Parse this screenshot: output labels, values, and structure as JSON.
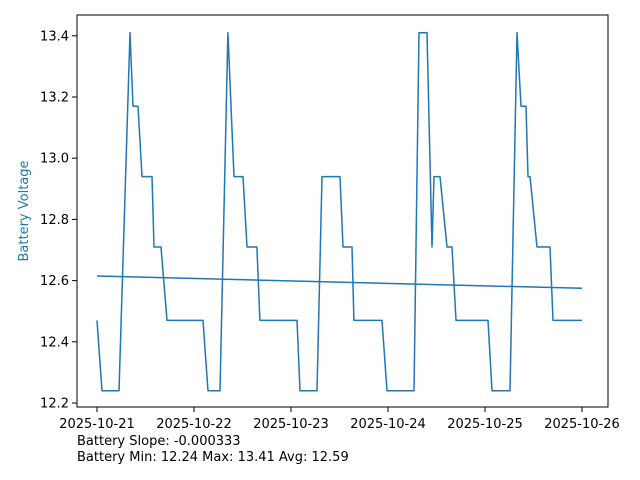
{
  "figure": {
    "background": "#ffffff",
    "line_color": "#1f77b4",
    "trend_color": "#1f77b4",
    "axis_color": "#000000",
    "tick_label_color": "#000000",
    "ylabel": "Battery Voltage",
    "ylabel_color": "#1f77b4",
    "annotation_line1": "Battery Slope: -0.000333",
    "annotation_line2": "Battery Min: 12.24 Max: 13.41 Avg: 12.59"
  },
  "chart_data": {
    "type": "line",
    "title": "",
    "xlabel": "",
    "ylabel": "Battery Voltage",
    "grid": false,
    "legend": "none",
    "x_unit": "days since 2025-10-21",
    "x_tick_positions": [
      0,
      1,
      2,
      3,
      4,
      5
    ],
    "x_tick_labels": [
      "2025-10-21",
      "2025-10-22",
      "2025-10-23",
      "2025-10-24",
      "2025-10-25",
      "2025-10-26"
    ],
    "y_ticks": [
      12.2,
      12.4,
      12.6,
      12.8,
      13.0,
      13.2,
      13.4
    ],
    "xlim": [
      -0.206,
      5.268
    ],
    "ylim": [
      12.187,
      13.468
    ],
    "stats": {
      "slope": -0.000333,
      "min": 12.24,
      "max": 13.41,
      "avg": 12.59
    },
    "series": [
      {
        "name": "battery-voltage",
        "points": [
          [
            0.0,
            12.47
          ],
          [
            0.052,
            12.24
          ],
          [
            0.227,
            12.24
          ],
          [
            0.34,
            13.41
          ],
          [
            0.371,
            13.17
          ],
          [
            0.423,
            13.17
          ],
          [
            0.464,
            12.94
          ],
          [
            0.567,
            12.94
          ],
          [
            0.588,
            12.71
          ],
          [
            0.66,
            12.71
          ],
          [
            0.722,
            12.47
          ],
          [
            1.093,
            12.47
          ],
          [
            1.144,
            12.24
          ],
          [
            1.268,
            12.24
          ],
          [
            1.35,
            13.41
          ],
          [
            1.412,
            12.94
          ],
          [
            1.505,
            12.94
          ],
          [
            1.546,
            12.71
          ],
          [
            1.649,
            12.71
          ],
          [
            1.68,
            12.47
          ],
          [
            2.062,
            12.47
          ],
          [
            2.093,
            12.24
          ],
          [
            2.268,
            12.24
          ],
          [
            2.32,
            12.94
          ],
          [
            2.505,
            12.94
          ],
          [
            2.536,
            12.71
          ],
          [
            2.629,
            12.71
          ],
          [
            2.649,
            12.47
          ],
          [
            2.938,
            12.47
          ],
          [
            2.99,
            12.24
          ],
          [
            3.268,
            12.24
          ],
          [
            3.32,
            13.41
          ],
          [
            3.402,
            13.41
          ],
          [
            3.454,
            12.71
          ],
          [
            3.474,
            12.94
          ],
          [
            3.536,
            12.94
          ],
          [
            3.608,
            12.71
          ],
          [
            3.66,
            12.71
          ],
          [
            3.701,
            12.47
          ],
          [
            4.031,
            12.47
          ],
          [
            4.072,
            12.24
          ],
          [
            4.258,
            12.24
          ],
          [
            4.33,
            13.41
          ],
          [
            4.371,
            13.17
          ],
          [
            4.423,
            13.17
          ],
          [
            4.443,
            12.94
          ],
          [
            4.464,
            12.94
          ],
          [
            4.536,
            12.71
          ],
          [
            4.67,
            12.71
          ],
          [
            4.701,
            12.47
          ],
          [
            5.0,
            12.47
          ]
        ]
      },
      {
        "name": "battery-trend",
        "points": [
          [
            0.0,
            12.615
          ],
          [
            5.0,
            12.575
          ]
        ]
      }
    ]
  }
}
